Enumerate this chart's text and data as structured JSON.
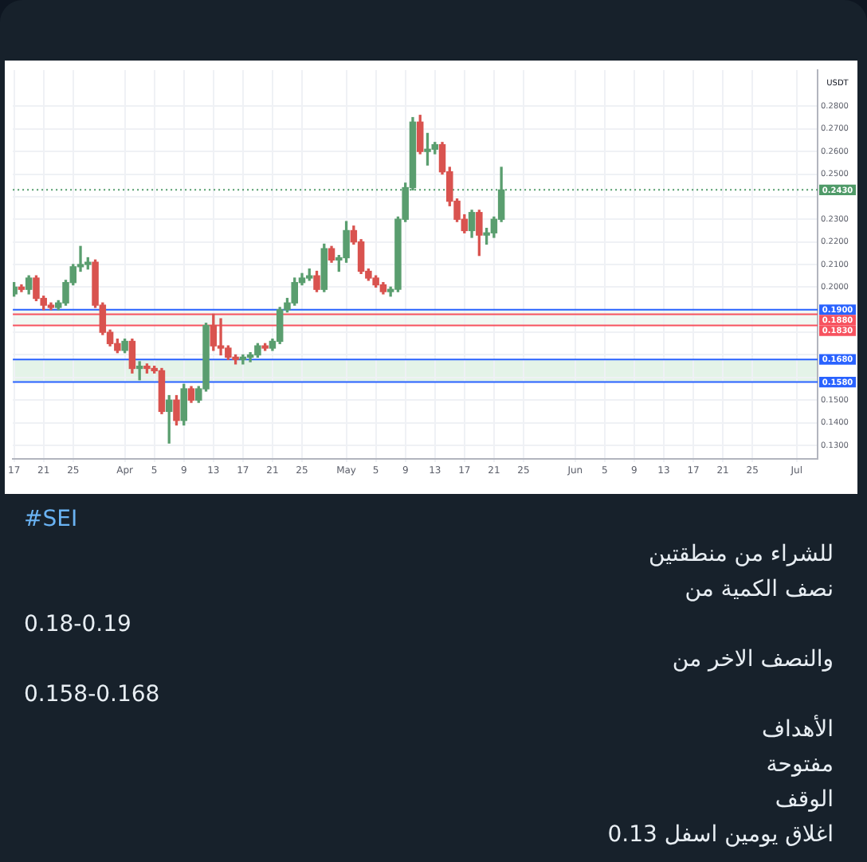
{
  "chart_data": {
    "type": "candlestick",
    "title": "#SEI",
    "ylabel": "USDT",
    "x": [
      "--03-17",
      "--03-18",
      "--03-19",
      "--03-20",
      "--03-21",
      "--03-22",
      "--03-23",
      "--03-24",
      "--03-25",
      "--03-26",
      "--03-27",
      "--03-28",
      "--03-29",
      "--03-30",
      "--03-31",
      "--04-01",
      "--04-02",
      "--04-03",
      "--04-04",
      "--04-05",
      "--04-06",
      "--04-07",
      "--04-08",
      "--04-09",
      "--04-10",
      "--04-11",
      "--04-12",
      "--04-13",
      "--04-14",
      "--04-15",
      "--04-16",
      "--04-17",
      "--04-18",
      "--04-19",
      "--04-20",
      "--04-21",
      "--04-22",
      "--04-23",
      "--04-24",
      "--04-25",
      "--04-26",
      "--04-27",
      "--04-28",
      "--04-29",
      "--04-30",
      "--05-01",
      "--05-02",
      "--05-03",
      "--05-04",
      "--05-05",
      "--05-06",
      "--05-07",
      "--05-08",
      "--05-09",
      "--05-10",
      "--05-11",
      "--05-12",
      "--05-13",
      "--05-14",
      "--05-15",
      "--05-16",
      "--05-17",
      "--05-18",
      "--05-19",
      "--05-20",
      "--05-21",
      "--05-22"
    ],
    "ohlc": [
      [
        0.197,
        0.202,
        0.196,
        0.2
      ],
      [
        0.2,
        0.201,
        0.198,
        0.199
      ],
      [
        0.199,
        0.205,
        0.197,
        0.204
      ],
      [
        0.204,
        0.205,
        0.194,
        0.195
      ],
      [
        0.195,
        0.196,
        0.19,
        0.192
      ],
      [
        0.192,
        0.193,
        0.19,
        0.191
      ],
      [
        0.191,
        0.194,
        0.19,
        0.193
      ],
      [
        0.193,
        0.203,
        0.192,
        0.202
      ],
      [
        0.202,
        0.21,
        0.201,
        0.209
      ],
      [
        0.209,
        0.218,
        0.207,
        0.21
      ],
      [
        0.21,
        0.213,
        0.208,
        0.211
      ],
      [
        0.211,
        0.212,
        0.191,
        0.192
      ],
      [
        0.192,
        0.193,
        0.179,
        0.18
      ],
      [
        0.18,
        0.181,
        0.174,
        0.175
      ],
      [
        0.175,
        0.177,
        0.171,
        0.172
      ],
      [
        0.172,
        0.177,
        0.171,
        0.176
      ],
      [
        0.176,
        0.177,
        0.162,
        0.164
      ],
      [
        0.164,
        0.167,
        0.159,
        0.165
      ],
      [
        0.165,
        0.166,
        0.162,
        0.164
      ],
      [
        0.164,
        0.165,
        0.162,
        0.163
      ],
      [
        0.163,
        0.164,
        0.144,
        0.145
      ],
      [
        0.145,
        0.152,
        0.131,
        0.15
      ],
      [
        0.15,
        0.152,
        0.139,
        0.141
      ],
      [
        0.141,
        0.157,
        0.139,
        0.155
      ],
      [
        0.155,
        0.156,
        0.149,
        0.15
      ],
      [
        0.15,
        0.156,
        0.149,
        0.155
      ],
      [
        0.155,
        0.184,
        0.154,
        0.183
      ],
      [
        0.183,
        0.188,
        0.172,
        0.174
      ],
      [
        0.174,
        0.186,
        0.17,
        0.173
      ],
      [
        0.173,
        0.174,
        0.168,
        0.169
      ],
      [
        0.169,
        0.17,
        0.166,
        0.168
      ],
      [
        0.168,
        0.17,
        0.166,
        0.169
      ],
      [
        0.169,
        0.171,
        0.167,
        0.17
      ],
      [
        0.17,
        0.175,
        0.169,
        0.174
      ],
      [
        0.174,
        0.175,
        0.172,
        0.173
      ],
      [
        0.173,
        0.177,
        0.172,
        0.176
      ],
      [
        0.176,
        0.191,
        0.175,
        0.19
      ],
      [
        0.19,
        0.195,
        0.189,
        0.193
      ],
      [
        0.193,
        0.204,
        0.192,
        0.202
      ],
      [
        0.202,
        0.206,
        0.201,
        0.204
      ],
      [
        0.204,
        0.208,
        0.203,
        0.205
      ],
      [
        0.205,
        0.207,
        0.198,
        0.199
      ],
      [
        0.199,
        0.219,
        0.198,
        0.217
      ],
      [
        0.217,
        0.218,
        0.211,
        0.212
      ],
      [
        0.212,
        0.214,
        0.207,
        0.213
      ],
      [
        0.213,
        0.229,
        0.211,
        0.225
      ],
      [
        0.225,
        0.227,
        0.219,
        0.22
      ],
      [
        0.22,
        0.221,
        0.206,
        0.207
      ],
      [
        0.207,
        0.208,
        0.203,
        0.204
      ],
      [
        0.204,
        0.205,
        0.2,
        0.201
      ],
      [
        0.201,
        0.202,
        0.197,
        0.198
      ],
      [
        0.198,
        0.2,
        0.196,
        0.199
      ],
      [
        0.199,
        0.231,
        0.198,
        0.23
      ],
      [
        0.23,
        0.246,
        0.229,
        0.244
      ],
      [
        0.244,
        0.275,
        0.243,
        0.273
      ],
      [
        0.273,
        0.276,
        0.259,
        0.26
      ],
      [
        0.26,
        0.268,
        0.254,
        0.261
      ],
      [
        0.261,
        0.264,
        0.259,
        0.263
      ],
      [
        0.263,
        0.264,
        0.25,
        0.251
      ],
      [
        0.251,
        0.253,
        0.236,
        0.238
      ],
      [
        0.238,
        0.239,
        0.229,
        0.23
      ],
      [
        0.23,
        0.232,
        0.224,
        0.225
      ],
      [
        0.225,
        0.234,
        0.222,
        0.233
      ],
      [
        0.233,
        0.234,
        0.214,
        0.223
      ],
      [
        0.223,
        0.226,
        0.219,
        0.224
      ],
      [
        0.224,
        0.231,
        0.222,
        0.23
      ],
      [
        0.23,
        0.253,
        0.229,
        0.243
      ]
    ],
    "colors": [
      "#5a9e6f",
      "#d9534f",
      "#5a9e6f",
      "#d9534f",
      "#d9534f",
      "#d9534f",
      "#5a9e6f",
      "#5a9e6f",
      "#5a9e6f",
      "#5a9e6f",
      "#5a9e6f",
      "#d9534f",
      "#d9534f",
      "#d9534f",
      "#d9534f",
      "#5a9e6f",
      "#d9534f",
      "#5a9e6f",
      "#d9534f",
      "#d9534f",
      "#d9534f",
      "#5a9e6f",
      "#d9534f",
      "#5a9e6f",
      "#d9534f",
      "#5a9e6f",
      "#5a9e6f",
      "#d9534f",
      "#d9534f",
      "#d9534f",
      "#d9534f",
      "#5a9e6f",
      "#5a9e6f",
      "#5a9e6f",
      "#d9534f",
      "#5a9e6f",
      "#5a9e6f",
      "#5a9e6f",
      "#5a9e6f",
      "#5a9e6f",
      "#5a9e6f",
      "#d9534f",
      "#5a9e6f",
      "#d9534f",
      "#5a9e6f",
      "#5a9e6f",
      "#d9534f",
      "#d9534f",
      "#d9534f",
      "#d9534f",
      "#d9534f",
      "#5a9e6f",
      "#5a9e6f",
      "#5a9e6f",
      "#5a9e6f",
      "#d9534f",
      "#5a9e6f",
      "#5a9e6f",
      "#d9534f",
      "#d9534f",
      "#d9534f",
      "#d9534f",
      "#5a9e6f",
      "#d9534f",
      "#5a9e6f",
      "#5a9e6f",
      "#5a9e6f"
    ],
    "xlim": [
      "--03-16T20:00",
      "--07-03T20:00"
    ],
    "xticks": [
      {
        "value": "--03-17",
        "label": "17"
      },
      {
        "value": "--03-21",
        "label": "21"
      },
      {
        "value": "--03-25",
        "label": "25"
      },
      {
        "value": "--04-01",
        "label": "Apr"
      },
      {
        "value": "--04-05",
        "label": "5"
      },
      {
        "value": "--04-09",
        "label": "9"
      },
      {
        "value": "--04-13",
        "label": "13"
      },
      {
        "value": "--04-17",
        "label": "17"
      },
      {
        "value": "--04-21",
        "label": "21"
      },
      {
        "value": "--04-25",
        "label": "25"
      },
      {
        "value": "--05-01",
        "label": "May"
      },
      {
        "value": "--05-05",
        "label": "5"
      },
      {
        "value": "--05-09",
        "label": "9"
      },
      {
        "value": "--05-13",
        "label": "13"
      },
      {
        "value": "--05-17",
        "label": "17"
      },
      {
        "value": "--05-21",
        "label": "21"
      },
      {
        "value": "--05-25",
        "label": "25"
      },
      {
        "value": "--06-01",
        "label": "Jun"
      },
      {
        "value": "--06-05",
        "label": "5"
      },
      {
        "value": "--06-09",
        "label": "9"
      },
      {
        "value": "--06-13",
        "label": "13"
      },
      {
        "value": "--06-17",
        "label": "17"
      },
      {
        "value": "--06-21",
        "label": "21"
      },
      {
        "value": "--06-25",
        "label": "25"
      },
      {
        "value": "--07-01",
        "label": "Jul"
      }
    ],
    "ylim": [
      0.124,
      0.296
    ],
    "yticks": [
      {
        "value": 0.13,
        "label": "0.1300"
      },
      {
        "value": 0.14,
        "label": "0.1400"
      },
      {
        "value": 0.15,
        "label": "0.1500"
      },
      {
        "value": 0.16,
        "label": null
      },
      {
        "value": 0.17,
        "label": null
      },
      {
        "value": 0.18,
        "label": null
      },
      {
        "value": 0.19,
        "label": null
      },
      {
        "value": 0.2,
        "label": "0.2000"
      },
      {
        "value": 0.21,
        "label": "0.2100"
      },
      {
        "value": 0.22,
        "label": "0.2200"
      },
      {
        "value": 0.23,
        "label": "0.2300"
      },
      {
        "value": 0.24,
        "label": null
      },
      {
        "value": 0.25,
        "label": "0.2500"
      },
      {
        "value": 0.26,
        "label": "0.2600"
      },
      {
        "value": 0.27,
        "label": "0.2700"
      },
      {
        "value": 0.28,
        "label": "0.2800"
      }
    ],
    "grid": true,
    "bands": [
      {
        "axis": "y",
        "from": 0.183,
        "to": 0.19,
        "color": "#f1f8f3"
      },
      {
        "axis": "y",
        "from": 0.158,
        "to": 0.168,
        "color": "#e4f3e8"
      }
    ],
    "ref_lines": [
      {
        "axis": "y",
        "value": 0.19,
        "label": "0.1900",
        "color": "#2962ff"
      },
      {
        "axis": "y",
        "value": 0.188,
        "label": "0.1880",
        "color": "#f7525f"
      },
      {
        "axis": "y",
        "value": 0.183,
        "label": "0.1830",
        "color": "#f7525f"
      },
      {
        "axis": "y",
        "value": 0.168,
        "label": "0.1680",
        "color": "#2962ff"
      },
      {
        "axis": "y",
        "value": 0.158,
        "label": "0.1580",
        "color": "#2962ff"
      },
      {
        "axis": "y",
        "value": 0.243,
        "label": "0.2430",
        "color": "#4f9a68",
        "line_style": "dotted"
      }
    ],
    "annotations": [
      "للشراء من منطقتين",
      "نصف الكمية من",
      "0.18-0.19",
      "والنصف الاخر من",
      "0.158-0.168",
      "الأهداف",
      "مفتوحة",
      "الوقف",
      "اغلاق يومين اسفل 0.13"
    ]
  }
}
